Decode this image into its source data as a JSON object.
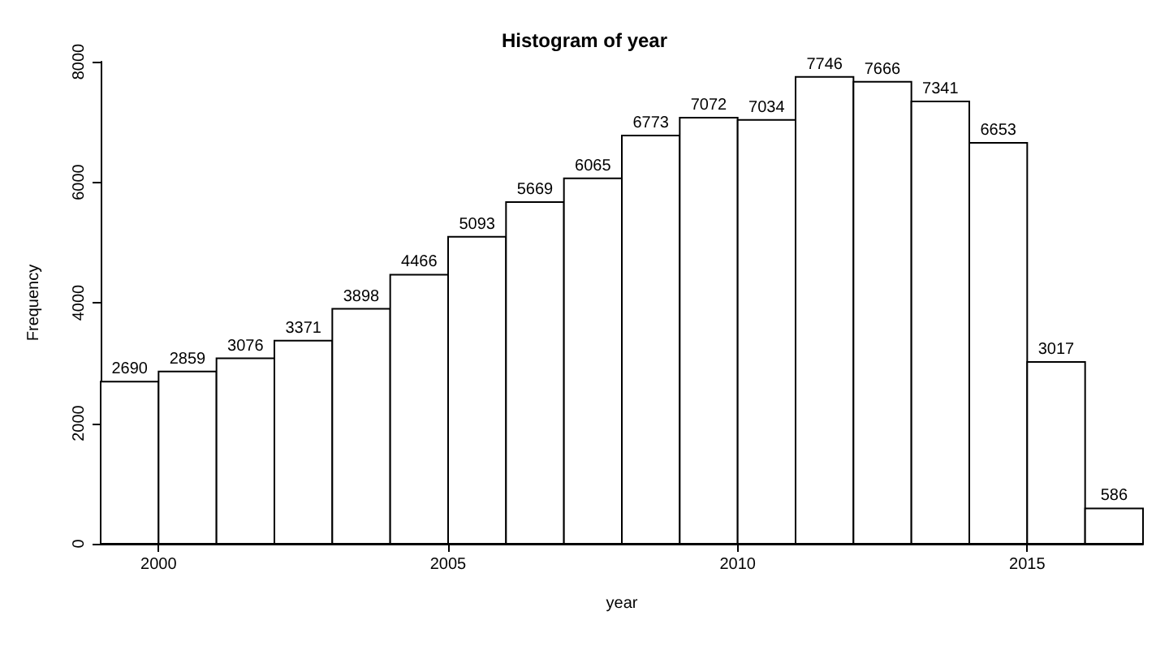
{
  "chart_data": {
    "type": "histogram",
    "title": "Histogram of year",
    "xlabel": "year",
    "ylabel": "Frequency",
    "bins": [
      1999,
      2000,
      2001,
      2002,
      2003,
      2004,
      2005,
      2006,
      2007,
      2008,
      2009,
      2010,
      2011,
      2012,
      2013,
      2014,
      2015,
      2016,
      2017
    ],
    "values": [
      2690,
      2859,
      3076,
      3371,
      3898,
      4466,
      5093,
      5669,
      6065,
      6773,
      7072,
      7034,
      7746,
      7666,
      7341,
      6653,
      3017,
      586
    ],
    "color": "#ffffff",
    "xlim": [
      1999,
      2017
    ],
    "xticks": [
      2000,
      2005,
      2010,
      2015
    ],
    "ylim": [
      0,
      8000
    ],
    "yticks": [
      0,
      2000,
      4000,
      6000,
      8000
    ],
    "grid": false,
    "data_labels": true
  }
}
